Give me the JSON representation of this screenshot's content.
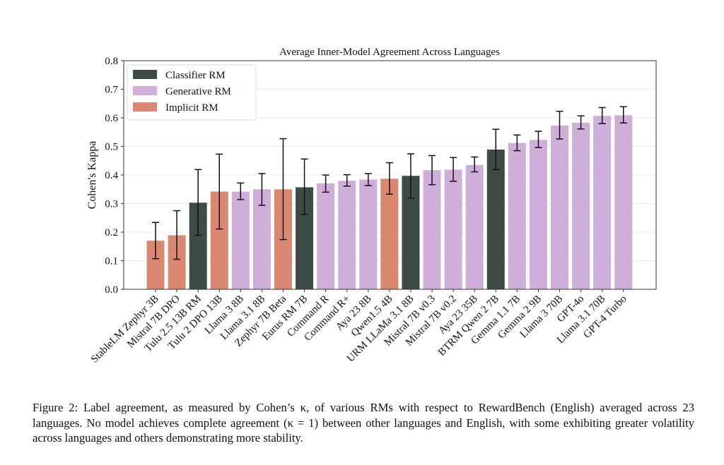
{
  "chart_data": {
    "type": "bar",
    "title": "Average Inner-Model Agreement Across Languages",
    "xlabel": "",
    "ylabel": "Cohen's Kappa",
    "ylim": [
      0,
      0.8
    ],
    "yticks": [
      "0.0",
      "0.1",
      "0.2",
      "0.3",
      "0.4",
      "0.5",
      "0.6",
      "0.7",
      "0.8"
    ],
    "grid": "horizontal",
    "legend_position": "top-left",
    "legend": [
      {
        "name": "Classifier RM",
        "color": "#3d4b44"
      },
      {
        "name": "Generative RM",
        "color": "#cfaed9"
      },
      {
        "name": "Implicit RM",
        "color": "#db8872"
      }
    ],
    "categories": [
      "StableLM Zephyr 3B",
      "Mistral 7B DPO",
      "Tulu 2.5 13B RM",
      "Tulu 2 DPO 13B",
      "Llama 3 8B",
      "Llama 3.1 8B",
      "Zephyr 7B Beta",
      "Eurus RM 7B",
      "Command R",
      "Command R+",
      "Aya 23 8B",
      "Qwen1.5 4B",
      "URM LLaMa 3.1 8B",
      "Mistral 7B v0.3",
      "Mistral 7B v0.2",
      "Aya 23 35B",
      "BTRM Qwen 2 7B",
      "Gemma 1.1 7B",
      "Gemma 2 9B",
      "Llama 3 70B",
      "GPT-4o",
      "Llama 3.1 70B",
      "GPT-4 Turbo"
    ],
    "types": [
      "Implicit RM",
      "Implicit RM",
      "Classifier RM",
      "Implicit RM",
      "Generative RM",
      "Generative RM",
      "Implicit RM",
      "Classifier RM",
      "Generative RM",
      "Generative RM",
      "Generative RM",
      "Implicit RM",
      "Classifier RM",
      "Generative RM",
      "Generative RM",
      "Generative RM",
      "Classifier RM",
      "Generative RM",
      "Generative RM",
      "Generative RM",
      "Generative RM",
      "Generative RM",
      "Generative RM"
    ],
    "values": [
      0.17,
      0.189,
      0.303,
      0.342,
      0.342,
      0.35,
      0.35,
      0.357,
      0.371,
      0.38,
      0.384,
      0.387,
      0.397,
      0.417,
      0.419,
      0.435,
      0.489,
      0.512,
      0.523,
      0.573,
      0.583,
      0.607,
      0.609
    ],
    "error_low": [
      0.107,
      0.105,
      0.189,
      0.211,
      0.314,
      0.294,
      0.174,
      0.262,
      0.34,
      0.361,
      0.363,
      0.333,
      0.319,
      0.366,
      0.378,
      0.411,
      0.419,
      0.485,
      0.496,
      0.526,
      0.561,
      0.58,
      0.582
    ],
    "error_high": [
      0.234,
      0.275,
      0.419,
      0.473,
      0.372,
      0.405,
      0.527,
      0.456,
      0.4,
      0.401,
      0.405,
      0.443,
      0.474,
      0.468,
      0.461,
      0.463,
      0.56,
      0.54,
      0.553,
      0.623,
      0.607,
      0.636,
      0.639
    ]
  },
  "caption": "Figure 2: Label agreement, as measured by Cohen’s κ, of various RMs with respect to RewardBench (English) averaged across 23 languages. No model achieves complete agreement (κ = 1) between other languages and English, with some exhibiting greater volatility across languages and others demonstrating more stability."
}
